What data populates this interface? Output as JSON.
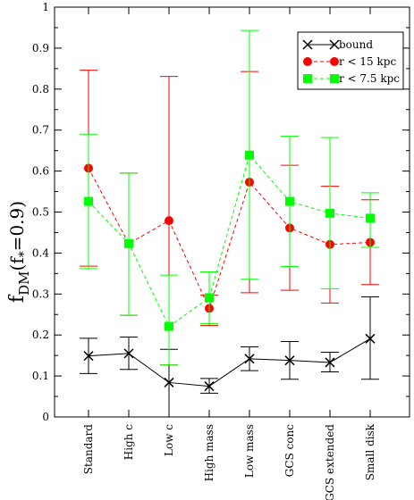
{
  "chart_data": {
    "type": "line",
    "categories": [
      "Standard",
      "High c",
      "Low c",
      "High mass",
      "Low mass",
      "GCS conc",
      "GCS extended",
      "Small disk"
    ],
    "ylabel": {
      "main": "f",
      "sub": "DM",
      "paren_open": "(f",
      "paren_sub": "*",
      "paren_close": "=0.9)"
    },
    "ylim": [
      0,
      1
    ],
    "yticks": [
      0,
      0.1,
      0.2,
      0.3,
      0.4,
      0.5,
      0.6,
      0.7,
      0.8,
      0.9,
      1
    ],
    "ytick_labels": [
      "0",
      "0.1",
      "0.2",
      "0.3",
      "0.4",
      "0.5",
      "0.6",
      "0.7",
      "0.8",
      "0.9",
      "1"
    ],
    "legend_position": "top-right",
    "series": [
      {
        "name": "bound",
        "color": "#000000",
        "marker": "x",
        "line": "solid",
        "x_offset": 0,
        "values": [
          0.149,
          0.155,
          0.084,
          0.075,
          0.142,
          0.138,
          0.133,
          0.191
        ],
        "err_low": [
          0.106,
          0.116,
          0.0,
          0.058,
          0.113,
          0.092,
          0.11,
          0.092
        ],
        "err_high": [
          0.192,
          0.195,
          0.165,
          0.094,
          0.171,
          0.184,
          0.158,
          0.293
        ]
      },
      {
        "name": "r < 15 kpc",
        "color": "#ff0000",
        "marker": "circle",
        "line": "dashed",
        "x_offset": 0,
        "values": [
          0.607,
          0.423,
          0.479,
          0.265,
          0.573,
          0.461,
          0.421,
          0.426
        ],
        "err_low": [
          0.368,
          0.248,
          0.127,
          0.223,
          0.303,
          0.309,
          0.278,
          0.323
        ],
        "err_high": [
          0.846,
          0.595,
          0.831,
          0.297,
          0.843,
          0.614,
          0.563,
          0.53
        ]
      },
      {
        "name": "r < 7.5 kpc",
        "color": "#00ff00",
        "marker": "square",
        "line": "dashed",
        "x_offset": 0,
        "values": [
          0.526,
          0.423,
          0.221,
          0.291,
          0.639,
          0.526,
          0.497,
          0.485
        ],
        "err_low": [
          0.362,
          0.248,
          0.127,
          0.228,
          0.336,
          0.367,
          0.313,
          0.414
        ],
        "err_high": [
          0.69,
          0.595,
          0.346,
          0.354,
          0.943,
          0.685,
          0.682,
          0.547
        ]
      }
    ]
  }
}
